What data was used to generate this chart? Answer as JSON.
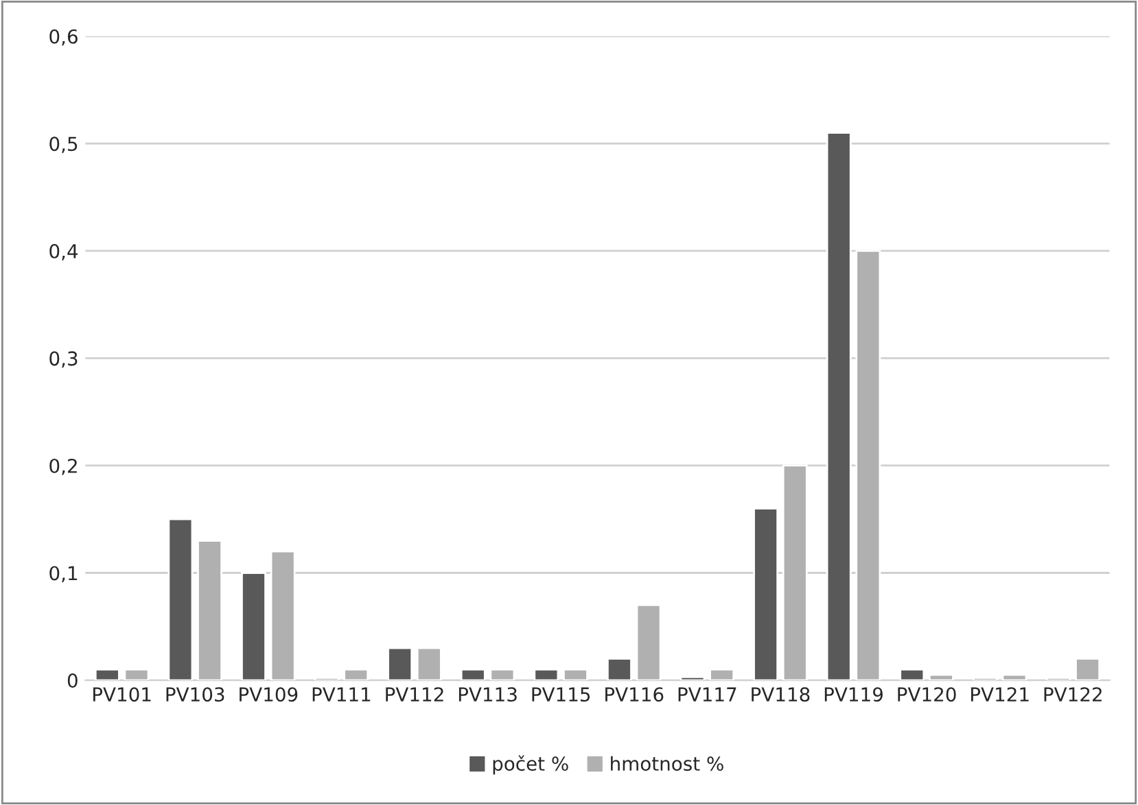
{
  "chart_data": {
    "type": "bar",
    "categories": [
      "PV101",
      "PV103",
      "PV109",
      "PV111",
      "PV112",
      "PV113",
      "PV115",
      "PV116",
      "PV117",
      "PV118",
      "PV119",
      "PV120",
      "PV121",
      "PV122"
    ],
    "series": [
      {
        "name": "počet %",
        "color": "#595959",
        "values": [
          0.01,
          0.15,
          0.1,
          0.002,
          0.03,
          0.01,
          0.01,
          0.02,
          0.003,
          0.16,
          0.51,
          0.01,
          0.002,
          0.002
        ]
      },
      {
        "name": "hmotnost %",
        "color": "#b0b0b0",
        "values": [
          0.01,
          0.13,
          0.12,
          0.01,
          0.03,
          0.01,
          0.01,
          0.07,
          0.01,
          0.2,
          0.4,
          0.005,
          0.005,
          0.02
        ]
      }
    ],
    "ylim": [
      0,
      0.6
    ],
    "yticks": [
      {
        "value": 0,
        "label": "0"
      },
      {
        "value": 0.1,
        "label": "0,1"
      },
      {
        "value": 0.2,
        "label": "0,2"
      },
      {
        "value": 0.3,
        "label": "0,3"
      },
      {
        "value": 0.4,
        "label": "0,4"
      },
      {
        "value": 0.5,
        "label": "0,5"
      },
      {
        "value": 0.6,
        "label": "0,6"
      }
    ],
    "grid": "y",
    "legend": "bottom"
  }
}
